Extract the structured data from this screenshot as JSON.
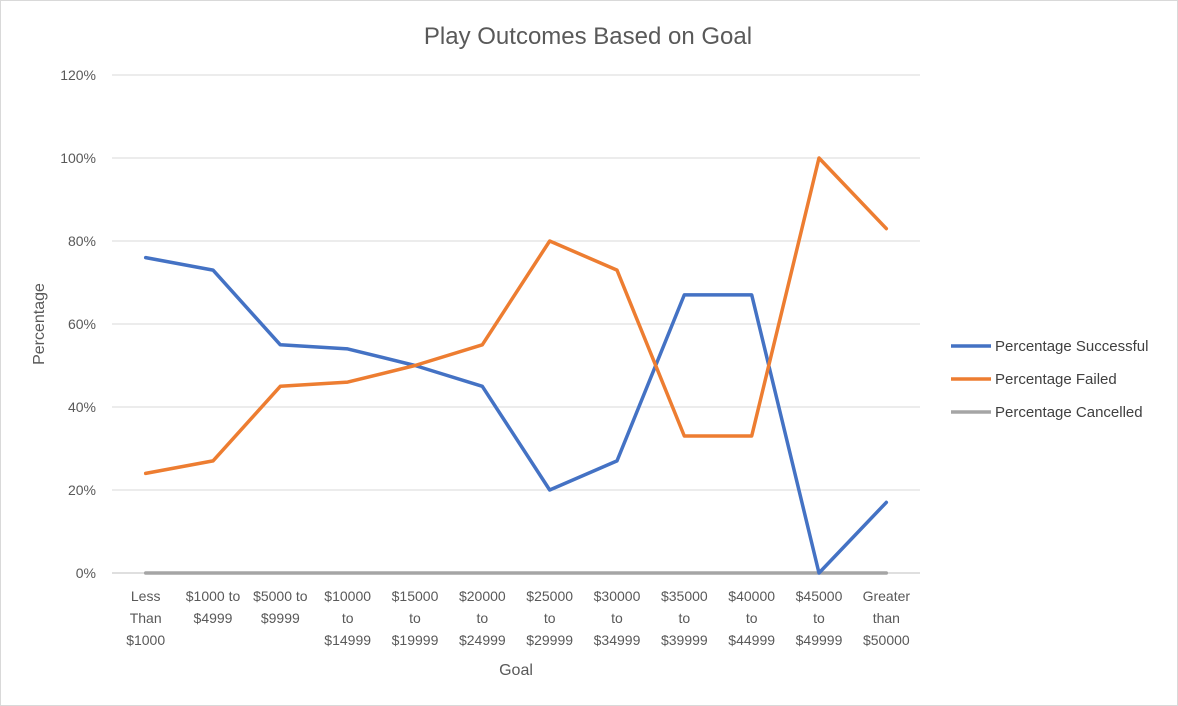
{
  "chart_data": {
    "type": "line",
    "title": "Play Outcomes Based on Goal",
    "xlabel": "Goal",
    "ylabel": "Percentage",
    "categories": [
      [
        "Less",
        "Than",
        "$1000"
      ],
      [
        "$1000 to",
        "$4999"
      ],
      [
        "$5000 to",
        "$9999"
      ],
      [
        "$10000",
        "to",
        "$14999"
      ],
      [
        "$15000",
        "to",
        "$19999"
      ],
      [
        "$20000",
        "to",
        "$24999"
      ],
      [
        "$25000",
        "to",
        "$29999"
      ],
      [
        "$30000",
        "to",
        "$34999"
      ],
      [
        "$35000",
        "to",
        "$39999"
      ],
      [
        "$40000",
        "to",
        "$44999"
      ],
      [
        "$45000",
        "to",
        "$49999"
      ],
      [
        "Greater",
        "than",
        "$50000"
      ]
    ],
    "ylim": [
      0,
      120
    ],
    "yticks": [
      0,
      20,
      40,
      60,
      80,
      100,
      120
    ],
    "ytick_labels": [
      "0%",
      "20%",
      "40%",
      "60%",
      "80%",
      "100%",
      "120%"
    ],
    "grid": true,
    "legend_position": "right",
    "series": [
      {
        "name": "Percentage Successful",
        "color": "#4472c4",
        "values": [
          76,
          73,
          55,
          54,
          50,
          45,
          20,
          27,
          67,
          67,
          0,
          17
        ]
      },
      {
        "name": "Percentage Failed",
        "color": "#ed7d31",
        "values": [
          24,
          27,
          45,
          46,
          50,
          55,
          80,
          73,
          33,
          33,
          100,
          83
        ]
      },
      {
        "name": "Percentage Cancelled",
        "color": "#a5a5a5",
        "values": [
          0,
          0,
          0,
          0,
          0,
          0,
          0,
          0,
          0,
          0,
          0,
          0
        ]
      }
    ]
  }
}
